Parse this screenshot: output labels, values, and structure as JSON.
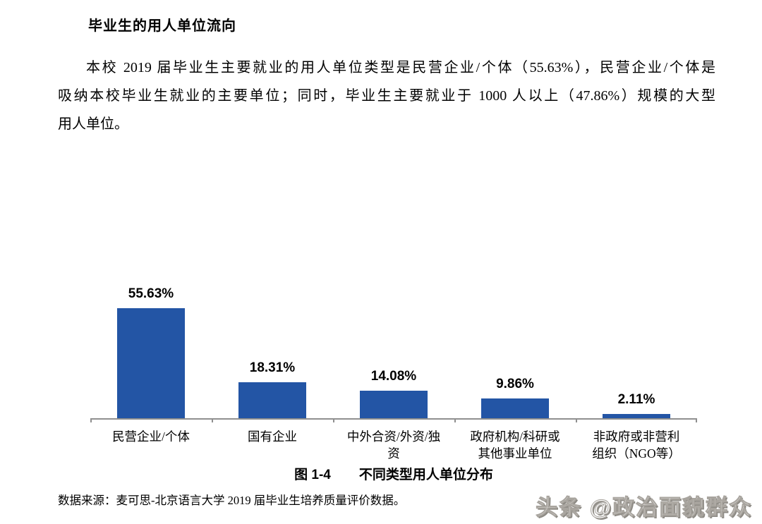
{
  "document": {
    "heading": "毕业生的用人单位流向",
    "paragraph_lines": [
      "本校 2019 届毕业生主要就业的用人单位类型是民营企业/个体（55.63%），民营企业/个体是",
      "吸纳本校毕业生就业的主要单位；同时，毕业生主要就业于 1000 人以上（47.86%）规模的大型",
      "用人单位。"
    ],
    "source": "数据来源：麦可思-北京语言大学 2019 届毕业生培养质量评价数据。"
  },
  "figure": {
    "label": "图 1-4",
    "title": "不同类型用人单位分布"
  },
  "chart_data": {
    "type": "bar",
    "categories": [
      "民营企业/个体",
      "国有企业",
      "中外合资/外资/独资",
      "政府机构/科研或其他事业单位",
      "非政府或非营利组织（NGO等）"
    ],
    "values": [
      55.63,
      18.31,
      14.08,
      9.86,
      2.11
    ],
    "value_labels": [
      "55.63%",
      "18.31%",
      "14.08%",
      "9.86%",
      "2.11%"
    ],
    "xtick_lines": [
      [
        "民营企业/个体"
      ],
      [
        "国有企业"
      ],
      [
        "中外合资/外资/独",
        "资"
      ],
      [
        "政府机构/科研或",
        "其他事业单位"
      ],
      [
        "非政府或非营利",
        "组织（NGO等）"
      ]
    ],
    "title": "不同类型用人单位分布",
    "xlabel": "",
    "ylabel": "",
    "ylim": [
      0,
      60
    ],
    "grid": false,
    "legend": false,
    "y_axis_shown": false,
    "data_label_position": "above",
    "bar_color": "#2355A5"
  },
  "watermark": {
    "text": "头条 @政治面貌群众"
  },
  "colors": {
    "bar_fill": "#2355A5",
    "axis": "#8F8F8F",
    "text": "#000000",
    "watermark_fill": "#FFFFFF",
    "watermark_outline": "#A8A49E"
  }
}
